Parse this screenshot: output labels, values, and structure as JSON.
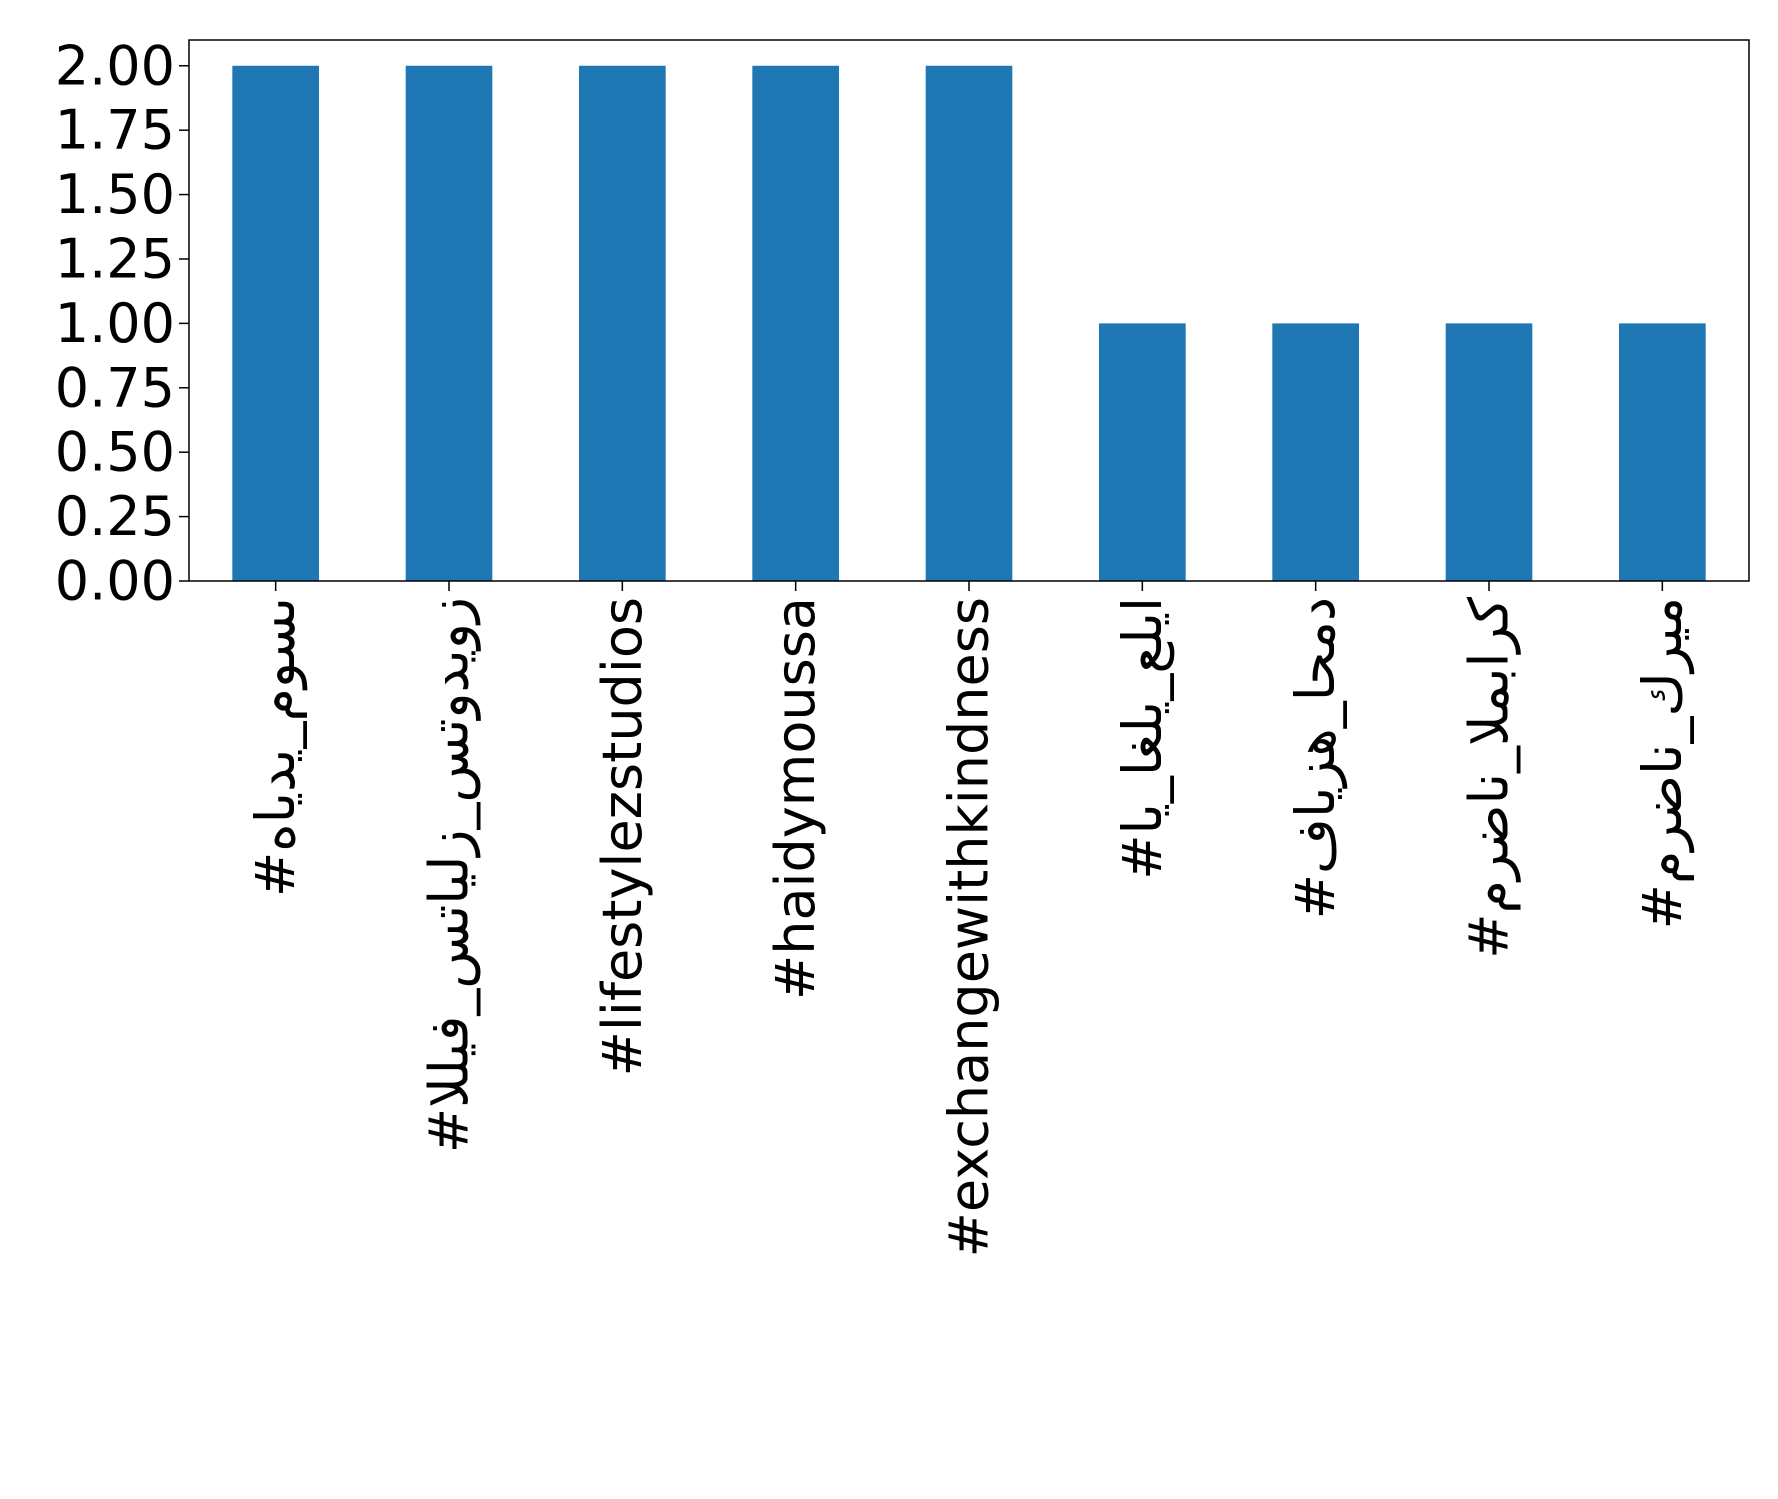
{
  "chart_data": {
    "type": "bar",
    "categories": [
      "#هايدي_موسى",
      "#الليف_ستايلز_ستوديوز",
      "#lifestylezstudios",
      "#haidymoussa",
      "#exchangewithkindness",
      "#اي_اغلي_عليا",
      "#فايزه_احمد",
      "#مرضان_المبارك",
      "#مرضان_كريم"
    ],
    "values": [
      2,
      2,
      2,
      2,
      2,
      1,
      1,
      1,
      1
    ],
    "color": "#1f77b4",
    "ylim": [
      0,
      2.1
    ],
    "yticks": [
      {
        "value": 0,
        "label": "0.00"
      },
      0.25,
      {
        "value": 0.5,
        "label": "0.50"
      },
      0.75,
      {
        "value": 1,
        "label": "1.00"
      },
      1.25,
      {
        "value": 1.5,
        "label": "1.50"
      },
      1.75,
      {
        "value": 2,
        "label": "2.00"
      }
    ],
    "grid": false
  }
}
